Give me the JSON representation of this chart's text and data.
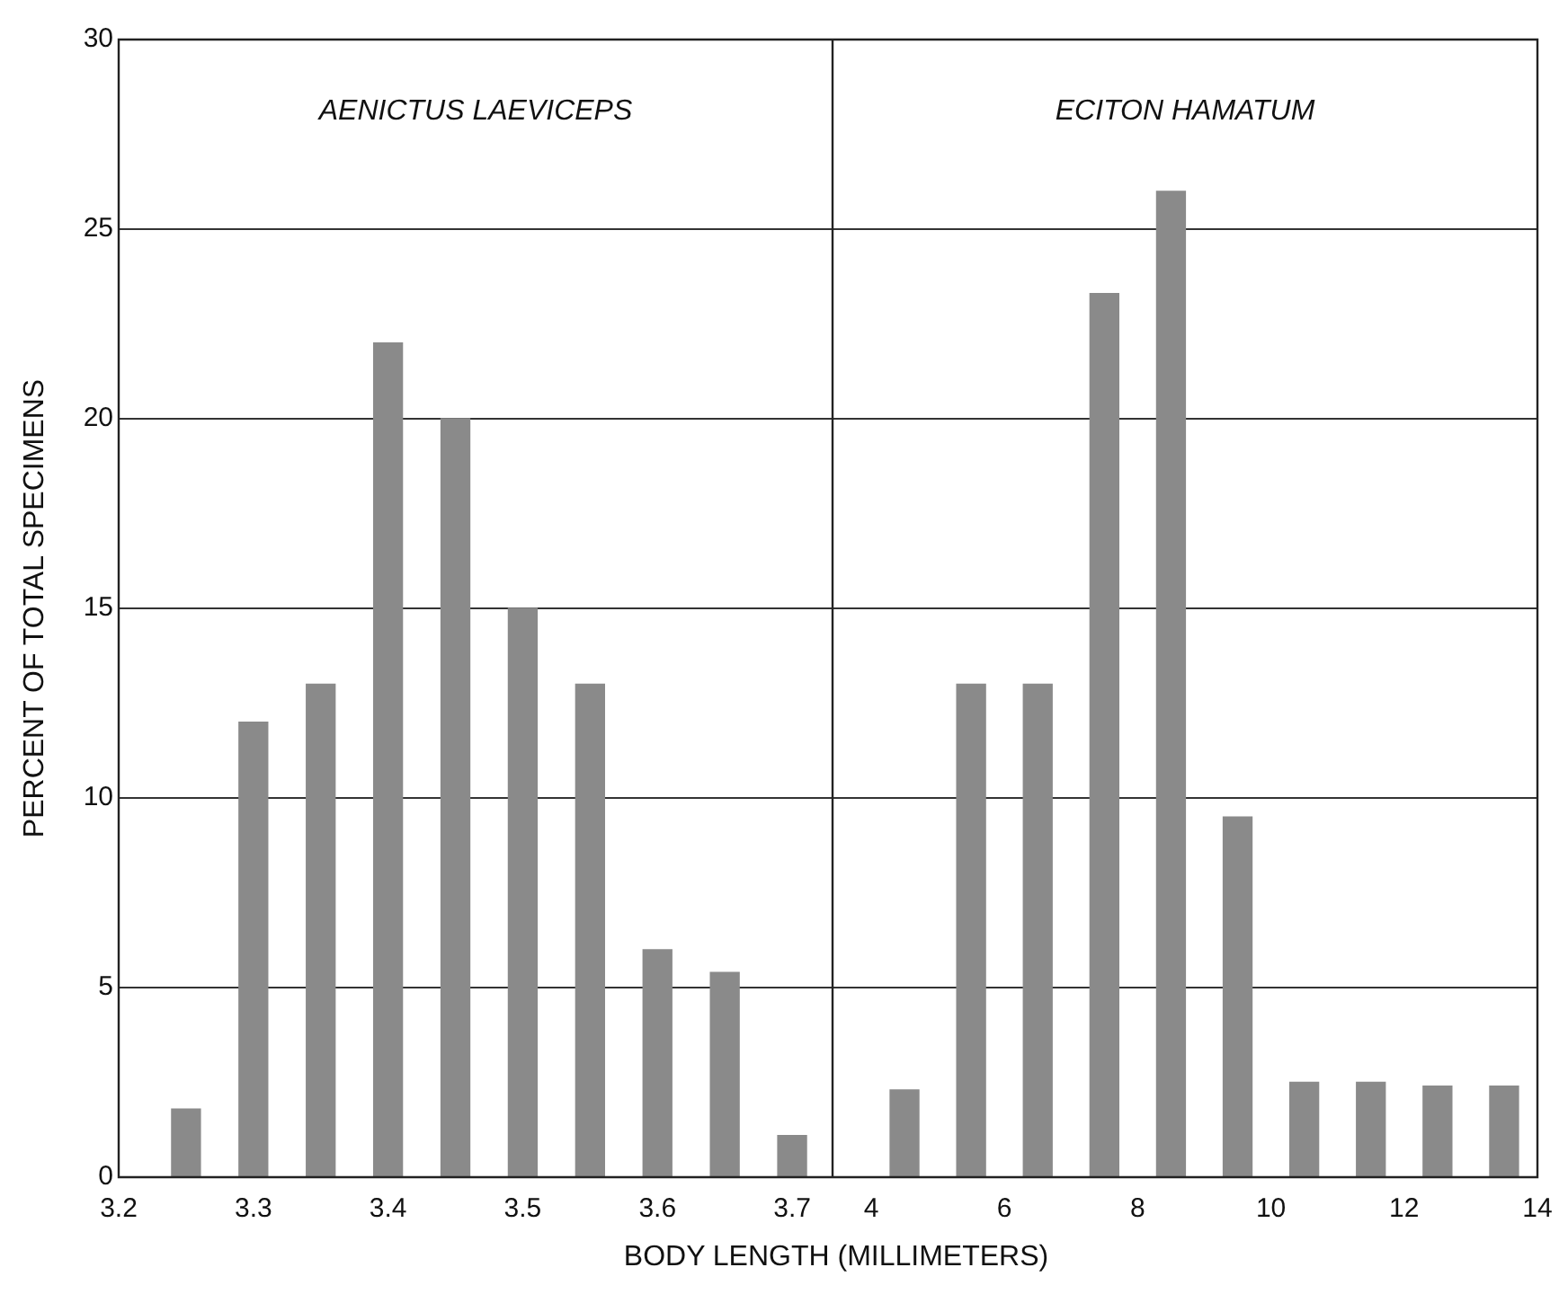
{
  "chart_data": [
    {
      "type": "bar",
      "annotations": [
        "AENICTUS LAEVICEPS"
      ],
      "xlabel": "BODY LENGTH (MILLIMETERS)",
      "ylabel": "PERCENT OF TOTAL SPECIMENS",
      "x": [
        3.25,
        3.3,
        3.35,
        3.4,
        3.45,
        3.5,
        3.55,
        3.6,
        3.65,
        3.7
      ],
      "values": [
        1.8,
        12,
        13,
        22,
        20,
        15,
        13,
        6,
        5.4,
        1.1
      ],
      "color": "#8a8a8a",
      "xlim": [
        3.2,
        3.73
      ],
      "xticks": [
        3.2,
        3.3,
        3.4,
        3.5,
        3.6,
        3.7
      ],
      "ylim": [
        0,
        30
      ],
      "yticks": [
        0,
        5,
        10,
        15,
        20,
        25,
        30
      ],
      "grid": "y"
    },
    {
      "type": "bar",
      "annotations": [
        "ECITON HAMATUM"
      ],
      "x": [
        4.5,
        5.5,
        6.5,
        7.5,
        8.5,
        9.5,
        10.5,
        11.5,
        12.5,
        13.5
      ],
      "values": [
        2.3,
        13,
        13,
        23.3,
        26,
        9.5,
        2.5,
        2.5,
        2.4,
        2.4
      ],
      "color": "#8a8a8a",
      "xlim": [
        3.42,
        14
      ],
      "xticks": [
        4,
        6,
        8,
        10,
        12,
        14
      ],
      "ylim": [
        0,
        30
      ],
      "yticks": [
        0,
        5,
        10,
        15,
        20,
        25,
        30
      ],
      "grid": "y",
      "tick_labels": "x"
    }
  ]
}
